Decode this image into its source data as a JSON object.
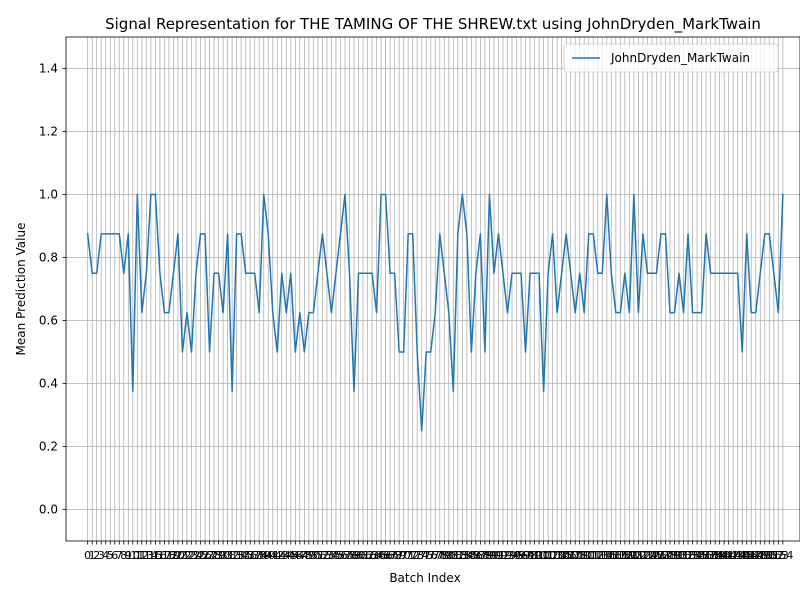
{
  "chart_data": {
    "type": "line",
    "title": "Signal Representation for THE TAMING OF THE SHREW.txt using JohnDryden_MarkTwain",
    "xlabel": "Batch Index",
    "ylabel": "Mean Prediction Value",
    "ylim": [
      -0.1,
      1.5
    ],
    "xlim": [
      -4.8,
      157.8
    ],
    "yticks": [
      0.0,
      0.2,
      0.4,
      0.6,
      0.8,
      1.0,
      1.2,
      1.4
    ],
    "ytick_labels": [
      "0.0",
      "0.2",
      "0.4",
      "0.6",
      "0.8",
      "1.0",
      "1.2",
      "1.4"
    ],
    "grid": true,
    "legend": "upper right",
    "line_color": "#1f77b4",
    "series": [
      {
        "name": "JohnDryden_MarkTwain",
        "values": [
          0.875,
          0.75,
          0.75,
          0.875,
          0.875,
          0.875,
          0.875,
          0.875,
          0.75,
          0.875,
          0.375,
          1.0,
          0.625,
          0.75,
          1.0,
          1.0,
          0.75,
          0.625,
          0.625,
          0.75,
          0.875,
          0.5,
          0.625,
          0.5,
          0.75,
          0.875,
          0.875,
          0.5,
          0.75,
          0.75,
          0.625,
          0.875,
          0.375,
          0.875,
          0.875,
          0.75,
          0.75,
          0.75,
          0.625,
          1.0,
          0.875,
          0.625,
          0.5,
          0.75,
          0.625,
          0.75,
          0.5,
          0.625,
          0.5,
          0.625,
          0.625,
          0.75,
          0.875,
          0.75,
          0.625,
          0.75,
          0.875,
          1.0,
          0.75,
          0.375,
          0.75,
          0.75,
          0.75,
          0.75,
          0.625,
          1.0,
          1.0,
          0.75,
          0.75,
          0.5,
          0.5,
          0.875,
          0.875,
          0.5,
          0.25,
          0.5,
          0.5,
          0.625,
          0.875,
          0.75,
          0.625,
          0.375,
          0.875,
          1.0,
          0.875,
          0.5,
          0.75,
          0.875,
          0.5,
          1.0,
          0.75,
          0.875,
          0.75,
          0.625,
          0.75,
          0.75,
          0.75,
          0.5,
          0.75,
          0.75,
          0.75,
          0.375,
          0.75,
          0.875,
          0.625,
          0.75,
          0.875,
          0.75,
          0.625,
          0.75,
          0.625,
          0.875,
          0.875,
          0.75,
          0.75,
          1.0,
          0.75,
          0.625,
          0.625,
          0.75,
          0.625,
          1.0,
          0.625,
          0.875,
          0.75,
          0.75,
          0.75,
          0.875,
          0.875,
          0.625,
          0.625,
          0.75,
          0.625,
          0.875,
          0.625,
          0.625,
          0.625,
          0.875,
          0.75,
          0.75,
          0.75,
          0.75,
          0.75,
          0.75,
          0.75,
          0.5,
          0.875,
          0.625,
          0.625,
          0.75,
          0.875,
          0.875,
          0.75,
          0.625,
          1.0
        ]
      }
    ]
  }
}
